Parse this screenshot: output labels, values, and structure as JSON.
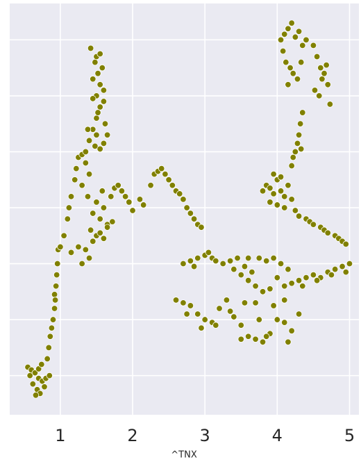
{
  "chart_data": {
    "type": "scatter",
    "x_label": "^TNX",
    "color": "#808000",
    "grid": true,
    "xlim": [
      0.3,
      5.13
    ],
    "ylim": [
      0.3,
      7.65
    ],
    "xticks": [
      1,
      2,
      3,
      4,
      5
    ],
    "yticks": [
      1,
      2,
      3,
      4,
      5,
      6,
      7
    ],
    "x": [
      0.55,
      0.6,
      0.65,
      0.7,
      0.75,
      0.62,
      0.68,
      0.72,
      0.58,
      0.8,
      0.85,
      0.66,
      0.7,
      0.74,
      0.78,
      0.82,
      0.84,
      0.86,
      0.88,
      0.9,
      0.92,
      0.92,
      0.94,
      0.95,
      0.96,
      0.97,
      0.93,
      1.0,
      1.05,
      1.1,
      1.12,
      1.15,
      1.2,
      1.22,
      1.25,
      1.3,
      1.3,
      1.35,
      1.38,
      1.4,
      1.42,
      1.45,
      1.5,
      1.5,
      1.55,
      1.58,
      1.6,
      1.65,
      1.7,
      1.72,
      1.75,
      1.8,
      1.85,
      1.9,
      1.95,
      2.0,
      2.1,
      2.15,
      1.15,
      1.25,
      1.35,
      1.45,
      1.55,
      1.65,
      1.3,
      1.4,
      1.6,
      1.35,
      1.4,
      1.45,
      1.5,
      1.55,
      1.6,
      1.62,
      1.65,
      1.5,
      1.55,
      1.45,
      1.52,
      1.58,
      1.6,
      1.48,
      1.5,
      1.55,
      1.42,
      1.48,
      1.52,
      1.45,
      1.5,
      1.55,
      1.6,
      1.38,
      2.25,
      2.3,
      2.35,
      2.4,
      2.45,
      2.5,
      2.55,
      2.6,
      2.65,
      2.7,
      2.75,
      2.8,
      2.85,
      2.9,
      2.95,
      2.7,
      2.8,
      2.9,
      3.0,
      3.1,
      3.15,
      2.85,
      3.05,
      2.6,
      2.7,
      2.8,
      2.9,
      3.0,
      3.1,
      3.2,
      3.3,
      3.4,
      3.5,
      3.6,
      3.7,
      3.8,
      3.9,
      4.0,
      4.1,
      4.2,
      4.3,
      2.75,
      2.95,
      3.15,
      3.35,
      3.55,
      3.75,
      3.95,
      4.15,
      3.5,
      3.7,
      3.85,
      4.1,
      3.25,
      3.35,
      3.45,
      3.55,
      3.65,
      3.75,
      3.85,
      3.95,
      4.05,
      4.15,
      3.5,
      3.6,
      3.7,
      3.8,
      3.9,
      4.0,
      3.4,
      3.6,
      4.1,
      4.2,
      4.3,
      4.4,
      4.5,
      4.6,
      4.7,
      4.8,
      4.9,
      5.0,
      4.35,
      4.55,
      4.75,
      4.95,
      4.2,
      4.22,
      4.25,
      4.28,
      4.3,
      4.32,
      4.35,
      4.33,
      3.8,
      3.85,
      3.9,
      3.95,
      4.0,
      4.05,
      4.1,
      4.15,
      4.2,
      3.9,
      4.0,
      4.1,
      4.05,
      3.95,
      4.25,
      4.3,
      4.4,
      4.45,
      4.5,
      4.6,
      4.65,
      4.7,
      4.8,
      4.85,
      4.9,
      4.95,
      4.05,
      4.1,
      4.15,
      4.2,
      4.25,
      4.3,
      4.35,
      4.4,
      4.08,
      4.12,
      4.18,
      4.22,
      4.28,
      4.33,
      4.5,
      4.55,
      4.6,
      4.65,
      4.7,
      4.52,
      4.58,
      4.62,
      4.68,
      4.73,
      4.15
    ],
    "y": [
      1.15,
      1.1,
      1.05,
      0.95,
      0.9,
      0.85,
      0.75,
      0.68,
      1.0,
      0.95,
      1.0,
      0.65,
      1.12,
      1.2,
      0.8,
      1.3,
      1.5,
      1.7,
      1.85,
      2.0,
      2.2,
      2.45,
      2.6,
      2.8,
      3.0,
      3.25,
      2.35,
      3.3,
      3.5,
      3.8,
      4.0,
      4.2,
      4.5,
      4.7,
      4.9,
      4.95,
      4.4,
      4.8,
      4.2,
      4.6,
      3.6,
      3.9,
      4.1,
      3.5,
      3.8,
      4.3,
      4.0,
      3.7,
      4.2,
      3.75,
      4.35,
      4.4,
      4.3,
      4.2,
      4.1,
      3.95,
      4.15,
      4.05,
      3.2,
      3.3,
      3.25,
      3.4,
      3.55,
      3.65,
      3.0,
      3.1,
      3.45,
      5.0,
      5.2,
      5.4,
      5.6,
      5.8,
      5.9,
      5.5,
      5.3,
      6.0,
      6.2,
      6.3,
      6.4,
      6.5,
      6.1,
      6.6,
      6.7,
      6.75,
      6.85,
      5.1,
      5.7,
      5.95,
      5.3,
      5.05,
      5.15,
      5.4,
      4.4,
      4.6,
      4.65,
      4.7,
      4.6,
      4.5,
      4.4,
      4.3,
      4.25,
      4.15,
      4.0,
      3.9,
      3.8,
      3.7,
      3.65,
      3.0,
      3.05,
      3.1,
      3.15,
      3.1,
      3.05,
      2.95,
      3.2,
      2.35,
      2.3,
      2.25,
      2.1,
      2.0,
      1.95,
      2.2,
      2.35,
      2.05,
      1.9,
      1.7,
      1.65,
      1.6,
      1.75,
      2.0,
      1.95,
      1.8,
      2.1,
      2.1,
      1.85,
      1.9,
      2.15,
      2.3,
      2.0,
      2.25,
      1.6,
      1.65,
      2.3,
      1.7,
      2.35,
      3.0,
      3.05,
      3.1,
      2.95,
      2.85,
      3.1,
      3.05,
      3.1,
      3.0,
      2.9,
      2.8,
      2.7,
      2.6,
      2.5,
      2.55,
      2.75,
      2.9,
      3.1,
      2.6,
      2.65,
      2.7,
      2.75,
      2.8,
      2.75,
      2.85,
      2.9,
      2.95,
      3.0,
      2.6,
      2.7,
      2.8,
      2.85,
      4.75,
      4.9,
      5.0,
      5.15,
      5.3,
      5.5,
      5.7,
      5.05,
      4.3,
      4.4,
      4.35,
      4.25,
      4.5,
      4.3,
      4.2,
      4.4,
      4.15,
      4.1,
      4.05,
      4.0,
      4.55,
      4.6,
      3.95,
      3.85,
      3.8,
      3.75,
      3.7,
      3.65,
      3.6,
      3.55,
      3.5,
      3.45,
      3.4,
      3.35,
      7.0,
      7.1,
      7.2,
      7.3,
      7.05,
      7.15,
      6.9,
      7.0,
      6.8,
      6.6,
      6.5,
      6.4,
      6.3,
      6.6,
      6.9,
      6.7,
      6.5,
      6.4,
      6.2,
      6.1,
      6.0,
      6.3,
      6.55,
      5.85,
      6.2
    ]
  }
}
